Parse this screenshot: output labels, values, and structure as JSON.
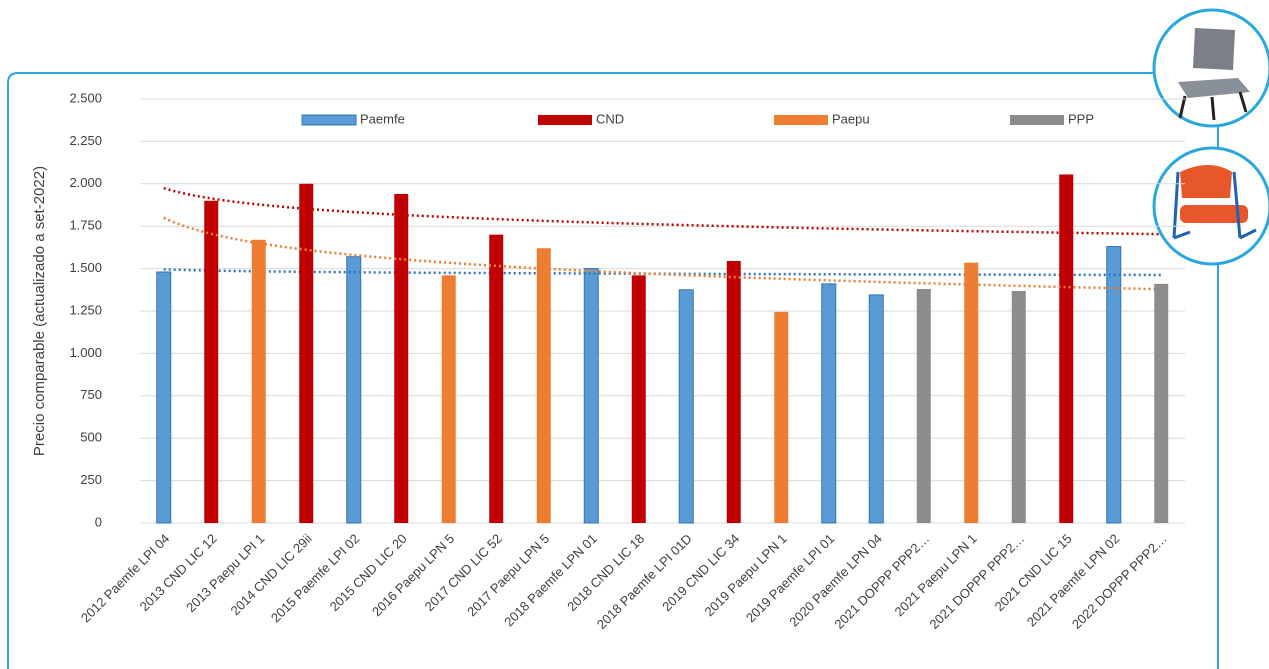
{
  "chart_data": {
    "type": "bar",
    "y_axis_label": "Precio comparable (actualizado a set-2022)",
    "categories": [
      "2012 Paemfe LPI 04",
      "2013 CND LIC 12",
      "2013 Paepu LPI 1",
      "2014 CND LIC 29ii",
      "2015 Paemfe LPI 02",
      "2015 CND LIC 20",
      "2016 Paepu LPN 5",
      "2017 CND LIC 52",
      "2017 Paepu LPN 5",
      "2018 Paemfe LPN 01",
      "2018 CND LIC 18",
      "2018 Paemfe LPI 01D",
      "2019 CND LIC 34",
      "2019 Paepu LPN 1",
      "2019 Paemfe LPI 01",
      "2020 Paemfe LPN 04",
      "2021 DOPPP PPP2…",
      "2021 Paepu LPN 1",
      "2021 DOPPP PPP2…",
      "2021 CND LIC 15",
      "2021 Paemfe LPN 02",
      "2022 DOPPP PPP2…"
    ],
    "series": [
      {
        "name": "Paemfe",
        "color": "#5b9bd5",
        "trendline": "logarithmic",
        "trend_color": "#2e75c6",
        "values": [
          1480,
          null,
          null,
          null,
          1570,
          null,
          null,
          null,
          null,
          1500,
          null,
          1375,
          null,
          null,
          1410,
          1345,
          null,
          null,
          null,
          null,
          1630,
          null
        ]
      },
      {
        "name": "CND",
        "color": "#c00000",
        "trendline": "logarithmic",
        "trend_color": "#c00000",
        "values": [
          null,
          1900,
          null,
          2000,
          null,
          1940,
          null,
          1700,
          null,
          null,
          1460,
          null,
          1545,
          null,
          null,
          null,
          null,
          null,
          null,
          2055,
          null,
          null
        ]
      },
      {
        "name": "Paepu",
        "color": "#ed7d31",
        "trendline": "logarithmic",
        "trend_color": "#ed7d31",
        "values": [
          null,
          null,
          1670,
          null,
          null,
          null,
          1460,
          null,
          1620,
          null,
          null,
          null,
          null,
          1245,
          null,
          null,
          null,
          1535,
          null,
          null,
          null,
          null
        ]
      },
      {
        "name": "PPP",
        "color": "#8c8c8c",
        "values": [
          null,
          null,
          null,
          null,
          null,
          null,
          null,
          null,
          null,
          null,
          null,
          null,
          null,
          null,
          null,
          null,
          1380,
          null,
          1368,
          null,
          null,
          1410
        ]
      }
    ],
    "ylim": [
      0,
      2500
    ],
    "yticks": [
      0,
      250,
      500,
      750,
      {
        "value": 1000,
        "label": "1.000"
      },
      {
        "value": 1250,
        "label": "1.250"
      },
      {
        "value": 1500,
        "label": "1.500"
      },
      {
        "value": 1750,
        "label": "1.750"
      },
      {
        "value": 2000,
        "label": "2.000"
      },
      {
        "value": 2250,
        "label": "2.250"
      },
      {
        "value": 2500,
        "label": "2.500"
      }
    ],
    "grid": true
  }
}
